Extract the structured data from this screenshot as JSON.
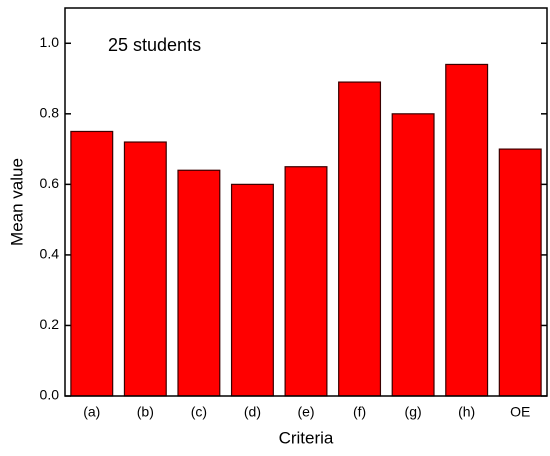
{
  "chart_data": {
    "type": "bar",
    "annotation": "25 students",
    "x_label": "Criteria",
    "y_label": "Mean value",
    "categories": [
      "(a)",
      "(b)",
      "(c)",
      "(d)",
      "(e)",
      "(f)",
      "(g)",
      "(h)",
      "OE"
    ],
    "values": [
      0.75,
      0.72,
      0.64,
      0.6,
      0.65,
      0.89,
      0.8,
      0.94,
      0.7
    ],
    "color": "#ff0000",
    "ylim": [
      0,
      1.1
    ],
    "yticks": [
      {
        "value": 0,
        "label": "0.0"
      },
      0.2,
      0.4,
      0.6,
      0.8,
      {
        "value": 1,
        "label": "1.0"
      }
    ]
  }
}
